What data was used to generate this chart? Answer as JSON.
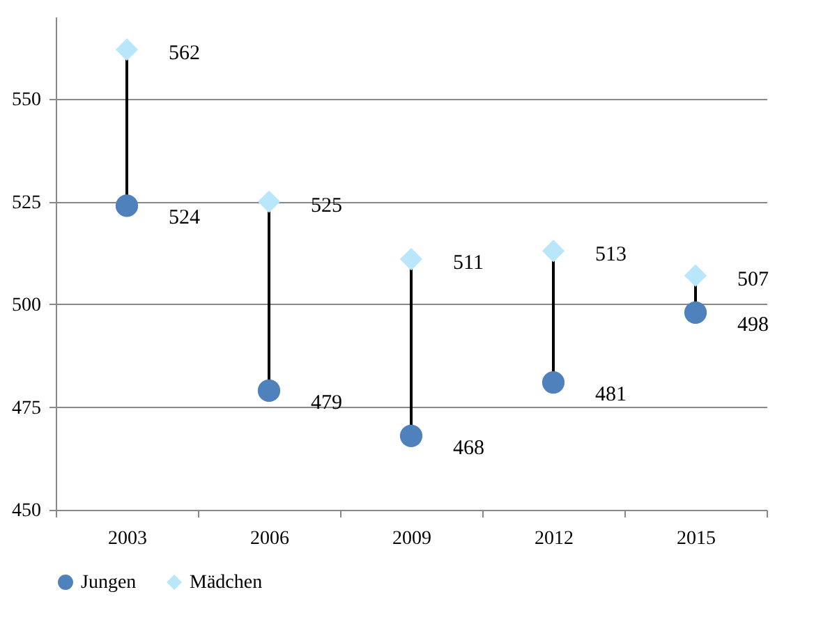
{
  "chart_data": {
    "type": "scatter",
    "categories": [
      "2003",
      "2006",
      "2009",
      "2012",
      "2015"
    ],
    "series": [
      {
        "name": "Jungen",
        "color": "#4f81bd",
        "marker": "circle",
        "values": [
          524,
          479,
          468,
          481,
          498
        ]
      },
      {
        "name": "Mädchen",
        "color": "#b9e6fa",
        "marker": "diamond",
        "values": [
          562,
          525,
          511,
          513,
          507
        ]
      }
    ],
    "ylim": [
      450,
      570
    ],
    "yticks": [
      450,
      475,
      500,
      525,
      550
    ],
    "grid": "y",
    "legend": "bottom",
    "data_labels": true
  }
}
